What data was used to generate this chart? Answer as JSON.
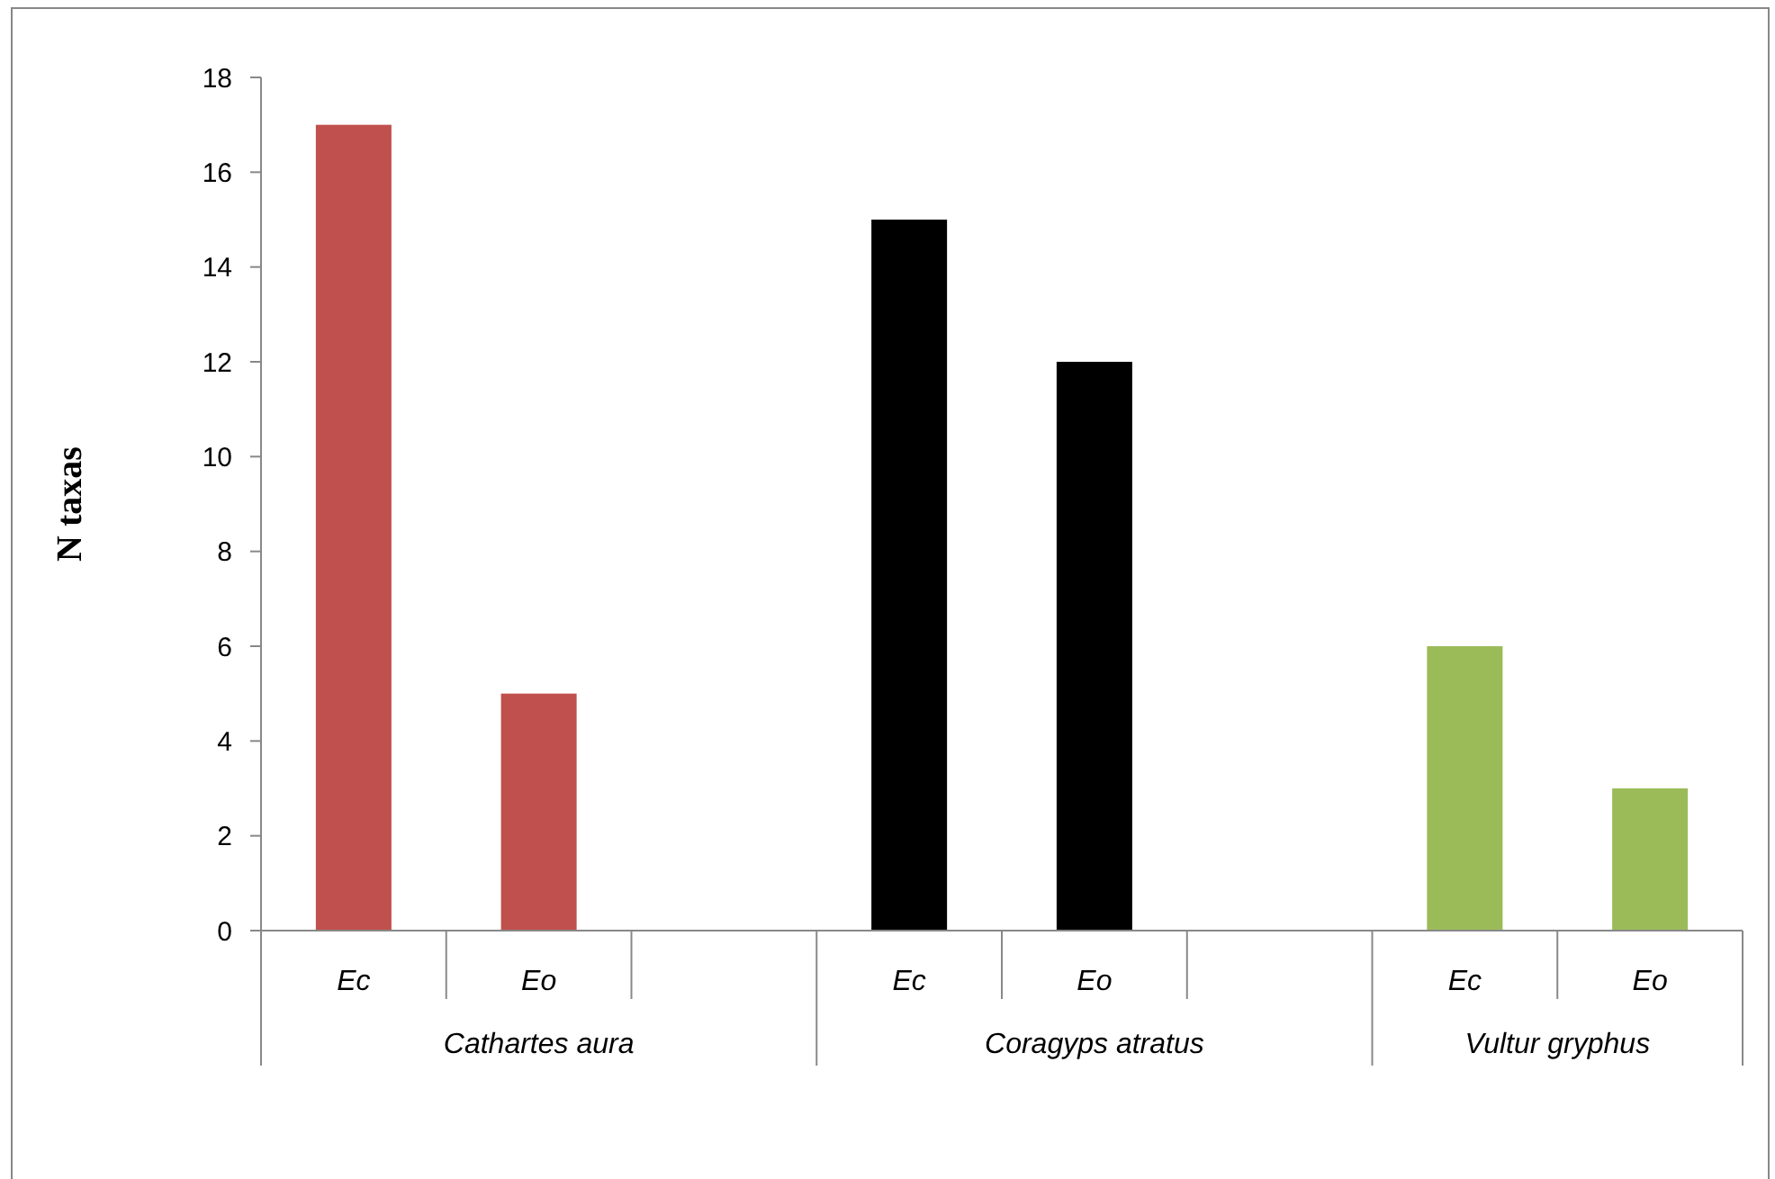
{
  "chart_data": {
    "type": "bar",
    "ylabel": "N taxas",
    "categories": [
      "Ec",
      "Eo",
      null,
      "Ec",
      "Eo",
      null,
      "Ec",
      "Eo"
    ],
    "values": [
      17,
      5,
      null,
      15,
      12,
      null,
      6,
      3
    ],
    "colors": [
      "#c0504d",
      "#c0504d",
      null,
      "#000000",
      "#000000",
      null,
      "#9bbb59",
      "#9bbb59"
    ],
    "ylim": [
      0,
      18
    ],
    "yticks": [
      0,
      2,
      4,
      6,
      8,
      10,
      12,
      14,
      16,
      18
    ],
    "grid": false,
    "annotations": [
      "Cathartes aura",
      "Coragyps atratus",
      "Vultur gryphus"
    ]
  }
}
